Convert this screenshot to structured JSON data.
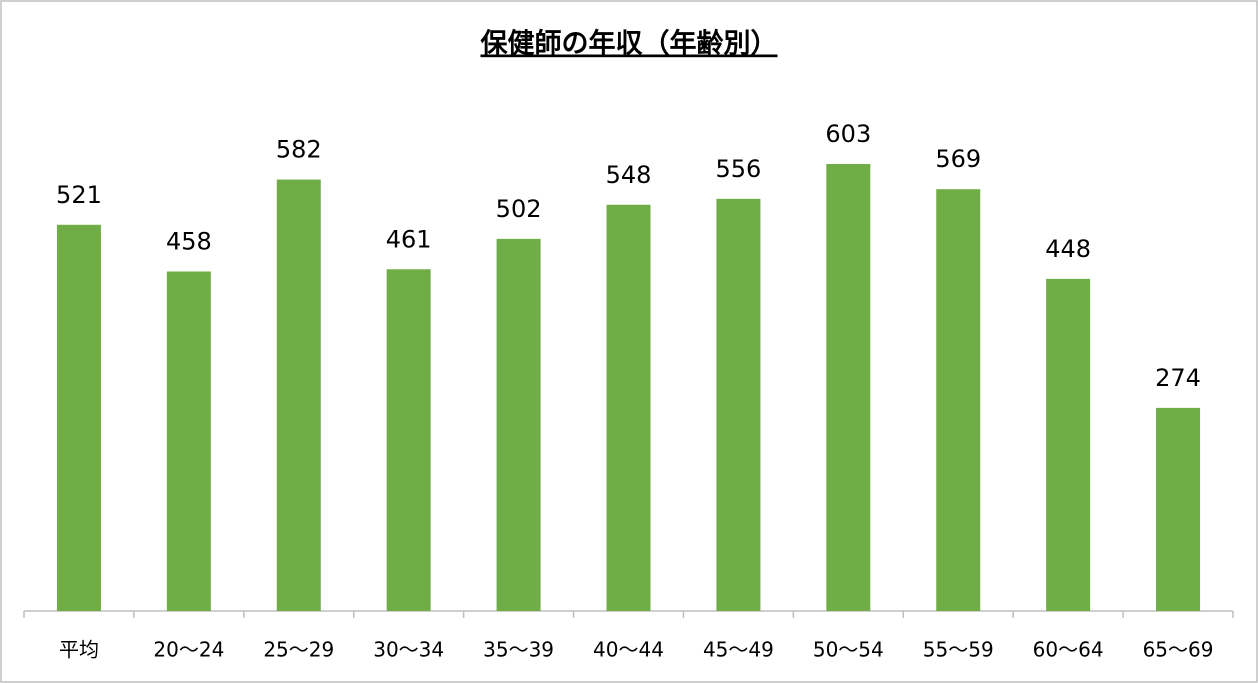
{
  "chart_data": {
    "type": "bar",
    "title": "保健師の年収（年齢別）",
    "categories": [
      "平均",
      "20〜24",
      "25〜29",
      "30〜34",
      "35〜39",
      "40〜44",
      "45〜49",
      "50〜54",
      "55〜59",
      "60〜64",
      "65〜69"
    ],
    "values": [
      521,
      458,
      582,
      461,
      502,
      548,
      556,
      603,
      569,
      448,
      274
    ],
    "color": "#70ad47"
  }
}
